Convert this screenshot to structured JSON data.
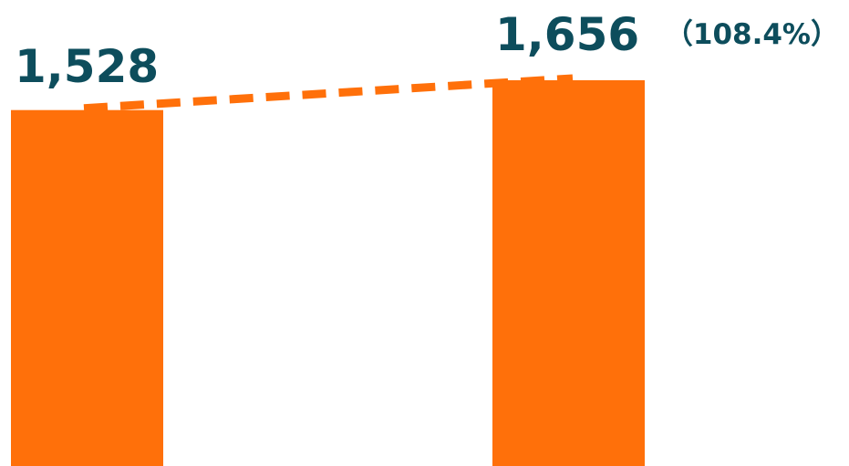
{
  "chart_data": {
    "type": "bar",
    "categories": [
      "",
      ""
    ],
    "values": [
      1528,
      1656
    ],
    "data_labels": [
      "1,528",
      "1,656"
    ],
    "annotations": [
      "",
      "（108.4%）"
    ],
    "trend_line": "dashed",
    "title": "",
    "xlabel": "",
    "ylabel": "",
    "grid": false,
    "legend": "none",
    "colors": {
      "bar": "#ff700a",
      "trend": "#ff700a",
      "value_label": "#0d4d5c",
      "ratio_label": "#0d4d5c"
    }
  }
}
